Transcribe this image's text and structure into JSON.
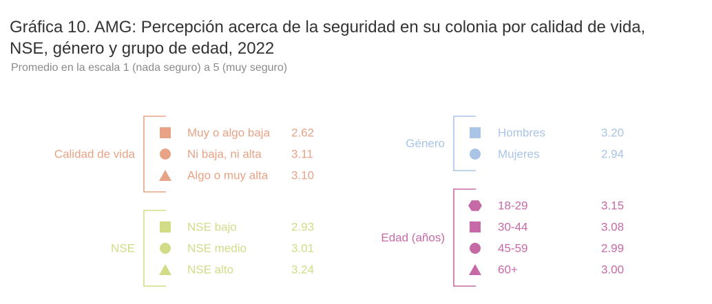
{
  "chart_data": {
    "type": "table",
    "title_line1": "Gráfica 10. AMG: Percepción acerca de la seguridad en su colonia por calidad de vida,",
    "title_line2": "NSE, género y grupo de edad, 2022",
    "subtitle": "Promedio en la escala 1 (nada seguro) a 5 (muy seguro)",
    "groups": [
      {
        "name": "Calidad de vida",
        "color": "#E8A386",
        "items": [
          {
            "label": "Muy o algo baja",
            "value": "2.62",
            "marker": "square"
          },
          {
            "label": "Ni baja, ni alta",
            "value": "3.11",
            "marker": "circle"
          },
          {
            "label": "Algo o muy alta",
            "value": "3.10",
            "marker": "triangle"
          }
        ]
      },
      {
        "name": "NSE",
        "color": "#D2DC86",
        "items": [
          {
            "label": "NSE bajo",
            "value": "2.93",
            "marker": "square"
          },
          {
            "label": "NSE medio",
            "value": "3.01",
            "marker": "circle"
          },
          {
            "label": "NSE alto",
            "value": "3.24",
            "marker": "triangle"
          }
        ]
      },
      {
        "name": "Género",
        "color": "#A9C4E6",
        "items": [
          {
            "label": "Hombres",
            "value": "3.20",
            "marker": "square"
          },
          {
            "label": "Mujeres",
            "value": "2.94",
            "marker": "circle"
          }
        ]
      },
      {
        "name": "Edad (años)",
        "color": "#C56AA6",
        "items": [
          {
            "label": "18-29",
            "value": "3.15",
            "marker": "hexagon"
          },
          {
            "label": "30-44",
            "value": "3.08",
            "marker": "square"
          },
          {
            "label": "45-59",
            "value": "2.99",
            "marker": "circle"
          },
          {
            "label": "60+",
            "value": "3.00",
            "marker": "triangle"
          }
        ]
      }
    ]
  }
}
